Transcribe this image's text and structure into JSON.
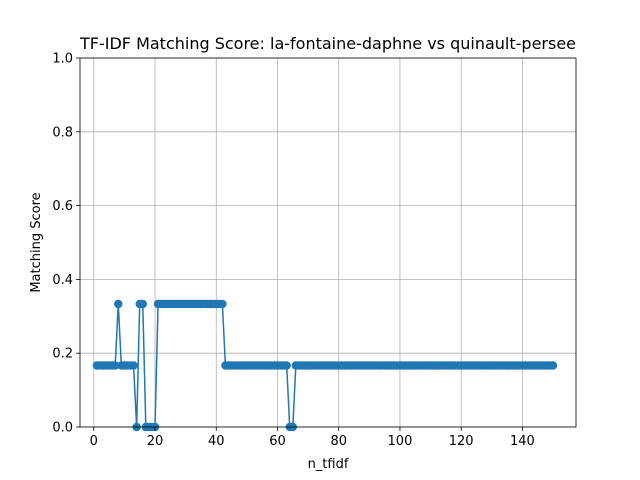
{
  "chart_data": {
    "type": "line",
    "title": "TF-IDF Matching Score: la-fontaine-daphne vs quinault-persee",
    "xlabel": "n_tfidf",
    "ylabel": "Matching Score",
    "xlim": [
      -4.5,
      157.5
    ],
    "ylim": [
      0,
      1
    ],
    "xticks": [
      0,
      20,
      40,
      60,
      80,
      100,
      120,
      140
    ],
    "yticks": [
      0.0,
      0.2,
      0.4,
      0.6,
      0.8,
      1.0
    ],
    "grid": true,
    "line_color": "#1f77b4",
    "marker": "circle",
    "series": [
      {
        "x": [
          1,
          2,
          3,
          4,
          5,
          6,
          7,
          8,
          9,
          10,
          11,
          12,
          13,
          14,
          15,
          16,
          17,
          18,
          19,
          20,
          21,
          22,
          23,
          24,
          25,
          26,
          27,
          28,
          29,
          30,
          31,
          32,
          33,
          34,
          35,
          36,
          37,
          38,
          39,
          40,
          41,
          42,
          43,
          44,
          45,
          46,
          47,
          48,
          49,
          50,
          51,
          52,
          53,
          54,
          55,
          56,
          57,
          58,
          59,
          60,
          61,
          62,
          63,
          64,
          65,
          66,
          67,
          68,
          69,
          70,
          71,
          72,
          73,
          74,
          75,
          76,
          77,
          78,
          79,
          80,
          81,
          82,
          83,
          84,
          85,
          86,
          87,
          88,
          89,
          90,
          91,
          92,
          93,
          94,
          95,
          96,
          97,
          98,
          99,
          100,
          101,
          102,
          103,
          104,
          105,
          106,
          107,
          108,
          109,
          110,
          111,
          112,
          113,
          114,
          115,
          116,
          117,
          118,
          119,
          120,
          121,
          122,
          123,
          124,
          125,
          126,
          127,
          128,
          129,
          130,
          131,
          132,
          133,
          134,
          135,
          136,
          137,
          138,
          139,
          140,
          141,
          142,
          143,
          144,
          145,
          146,
          147,
          148,
          149,
          150
        ],
        "y": [
          0.1667,
          0.1667,
          0.1667,
          0.1667,
          0.1667,
          0.1667,
          0.1667,
          0.3333,
          0.1667,
          0.1667,
          0.1667,
          0.1667,
          0.1667,
          0,
          0.3333,
          0.3333,
          0,
          0,
          0,
          0,
          0.3333,
          0.3333,
          0.3333,
          0.3333,
          0.3333,
          0.3333,
          0.3333,
          0.3333,
          0.3333,
          0.3333,
          0.3333,
          0.3333,
          0.3333,
          0.3333,
          0.3333,
          0.3333,
          0.3333,
          0.3333,
          0.3333,
          0.3333,
          0.3333,
          0.3333,
          0.1667,
          0.1667,
          0.1667,
          0.1667,
          0.1667,
          0.1667,
          0.1667,
          0.1667,
          0.1667,
          0.1667,
          0.1667,
          0.1667,
          0.1667,
          0.1667,
          0.1667,
          0.1667,
          0.1667,
          0.1667,
          0.1667,
          0.1667,
          0.1667,
          0,
          0,
          0.1667,
          0.1667,
          0.1667,
          0.1667,
          0.1667,
          0.1667,
          0.1667,
          0.1667,
          0.1667,
          0.1667,
          0.1667,
          0.1667,
          0.1667,
          0.1667,
          0.1667,
          0.1667,
          0.1667,
          0.1667,
          0.1667,
          0.1667,
          0.1667,
          0.1667,
          0.1667,
          0.1667,
          0.1667,
          0.1667,
          0.1667,
          0.1667,
          0.1667,
          0.1667,
          0.1667,
          0.1667,
          0.1667,
          0.1667,
          0.1667,
          0.1667,
          0.1667,
          0.1667,
          0.1667,
          0.1667,
          0.1667,
          0.1667,
          0.1667,
          0.1667,
          0.1667,
          0.1667,
          0.1667,
          0.1667,
          0.1667,
          0.1667,
          0.1667,
          0.1667,
          0.1667,
          0.1667,
          0.1667,
          0.1667,
          0.1667,
          0.1667,
          0.1667,
          0.1667,
          0.1667,
          0.1667,
          0.1667,
          0.1667,
          0.1667,
          0.1667,
          0.1667,
          0.1667,
          0.1667,
          0.1667,
          0.1667,
          0.1667,
          0.1667,
          0.1667,
          0.1667,
          0.1667,
          0.1667,
          0.1667,
          0.1667,
          0.1667,
          0.1667,
          0.1667,
          0.1667,
          0.1667,
          0.1667
        ]
      }
    ]
  }
}
